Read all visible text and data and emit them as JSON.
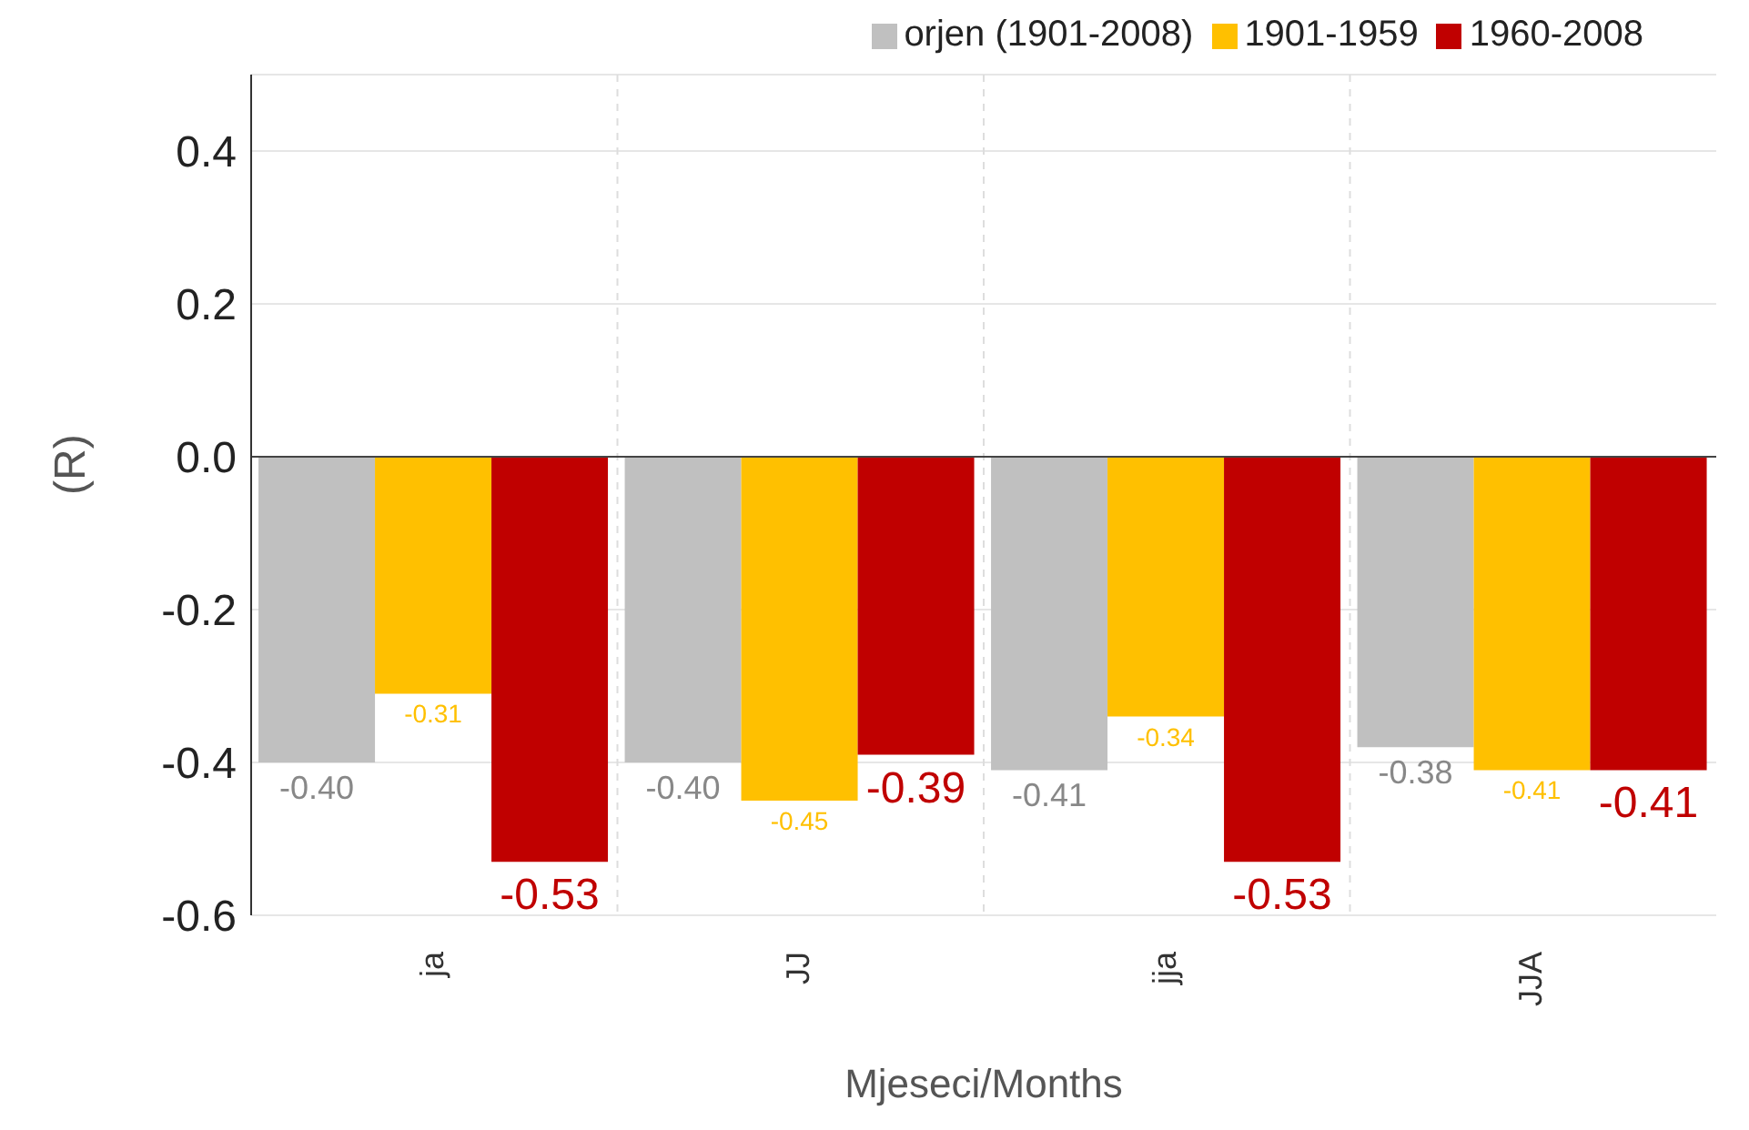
{
  "chart_data": {
    "type": "bar",
    "xlabel": "Mjeseci/Months",
    "ylabel": "(R)",
    "categories": [
      "ja",
      "JJ",
      "jja",
      "JJA"
    ],
    "series": [
      {
        "name": "orjen (1901-2008)",
        "color": "#c0c0c0",
        "values": [
          -0.4,
          -0.4,
          -0.41,
          -0.38
        ],
        "value_labels": [
          "-0.40",
          "-0.40",
          "-0.41",
          "-0.38"
        ]
      },
      {
        "name": "1901-1959",
        "color": "#ffc000",
        "values": [
          -0.31,
          -0.45,
          -0.34,
          -0.41
        ],
        "value_labels": [
          "-0.31",
          "-0.45",
          "-0.34",
          "-0.41"
        ]
      },
      {
        "name": "1960-2008",
        "color": "#c00000",
        "values": [
          -0.53,
          -0.39,
          -0.53,
          -0.41
        ],
        "value_labels": [
          "-0.53",
          "-0.39",
          "-0.53",
          "-0.41"
        ]
      }
    ],
    "ylim": [
      -0.6,
      0.5
    ],
    "yticks": [
      -0.6,
      -0.4,
      -0.2,
      {
        "value": 0,
        "label": "0.0"
      },
      0.2,
      0.4
    ],
    "grid": true,
    "legend": "top right"
  }
}
